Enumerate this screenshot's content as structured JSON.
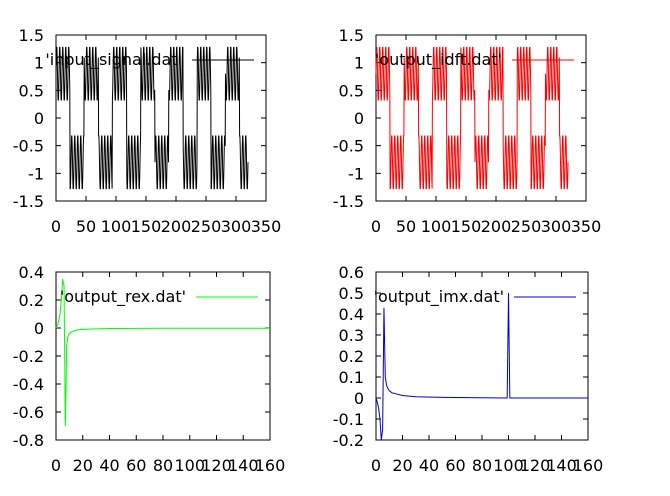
{
  "chart_data": [
    {
      "type": "line",
      "title": "",
      "xlabel": "",
      "ylabel": "",
      "xlim": [
        0,
        350
      ],
      "ylim": [
        -1.5,
        1.5
      ],
      "x_ticks": [
        "0",
        "50",
        "100",
        "150",
        "200",
        "250",
        "300",
        "350"
      ],
      "y_ticks": [
        "1.5",
        "1",
        "0.5",
        "0",
        "-0.5",
        "-1",
        "-1.5"
      ],
      "legend_position": "top-right",
      "series": [
        {
          "name": "'input_signal.dat'",
          "color": "#000000",
          "description_x": [
            0,
            320
          ],
          "model": {
            "kind": "square_plus_sine",
            "low_amplitude": 0.8,
            "low_period": 47,
            "high_amplitude": 0.5,
            "high_period": 5
          }
        }
      ]
    },
    {
      "type": "line",
      "title": "",
      "xlabel": "",
      "ylabel": "",
      "xlim": [
        0,
        350
      ],
      "ylim": [
        -1.5,
        1.5
      ],
      "x_ticks": [
        "0",
        "50",
        "100",
        "150",
        "200",
        "250",
        "300",
        "350"
      ],
      "y_ticks": [
        "1.5",
        "1",
        "0.5",
        "0",
        "-0.5",
        "-1",
        "-1.5"
      ],
      "legend_position": "top-right",
      "series": [
        {
          "name": "'output_idft.dat'",
          "color": "#ff0000",
          "description_x": [
            0,
            320
          ],
          "model": {
            "kind": "square_plus_sine",
            "low_amplitude": 0.8,
            "low_period": 47,
            "high_amplitude": 0.5,
            "high_period": 5
          }
        }
      ]
    },
    {
      "type": "line",
      "title": "",
      "xlabel": "",
      "ylabel": "",
      "xlim": [
        0,
        160
      ],
      "ylim": [
        -0.8,
        0.4
      ],
      "x_ticks": [
        "0",
        "20",
        "40",
        "60",
        "80",
        "100",
        "120",
        "140",
        "160"
      ],
      "y_ticks": [
        "0.4",
        "0.2",
        "0",
        "-0.2",
        "-0.4",
        "-0.6",
        "-0.8"
      ],
      "legend_position": "top-right",
      "series": [
        {
          "name": "'output_rex.dat'",
          "color": "#00ff00",
          "x": [
            0,
            1,
            2,
            3,
            4,
            5,
            6,
            7,
            8,
            9,
            10,
            12,
            15,
            20,
            30,
            40,
            60,
            80,
            100,
            120,
            140,
            160
          ],
          "y": [
            0.0,
            0.02,
            0.05,
            0.1,
            0.2,
            0.35,
            0.3,
            -0.7,
            -0.12,
            -0.06,
            -0.04,
            -0.025,
            -0.015,
            -0.01,
            -0.006,
            -0.004,
            -0.003,
            -0.002,
            -0.002,
            -0.002,
            -0.002,
            -0.002
          ]
        }
      ]
    },
    {
      "type": "line",
      "title": "",
      "xlabel": "",
      "ylabel": "",
      "xlim": [
        0,
        160
      ],
      "ylim": [
        -0.2,
        0.6
      ],
      "x_ticks": [
        "0",
        "20",
        "40",
        "60",
        "80",
        "100",
        "120",
        "140",
        "160"
      ],
      "y_ticks": [
        "0.6",
        "0.5",
        "0.4",
        "0.3",
        "0.2",
        "0.1",
        "0",
        "-0.1",
        "-0.2"
      ],
      "legend_position": "top-right",
      "series": [
        {
          "name": "'output_imx.dat'",
          "color": "#0000cd",
          "x": [
            0,
            1,
            2,
            3,
            4,
            5,
            6,
            7,
            8,
            9,
            10,
            12,
            15,
            20,
            30,
            50,
            80,
            99,
            100,
            101,
            102,
            110,
            130,
            160
          ],
          "y": [
            0.0,
            -0.02,
            -0.05,
            -0.1,
            -0.2,
            -0.15,
            0.43,
            0.1,
            0.06,
            0.045,
            0.035,
            0.025,
            0.02,
            0.012,
            0.006,
            0.003,
            0.001,
            0.0,
            0.5,
            0.0,
            0.0,
            0.0,
            0.0,
            0.0
          ]
        }
      ]
    }
  ]
}
